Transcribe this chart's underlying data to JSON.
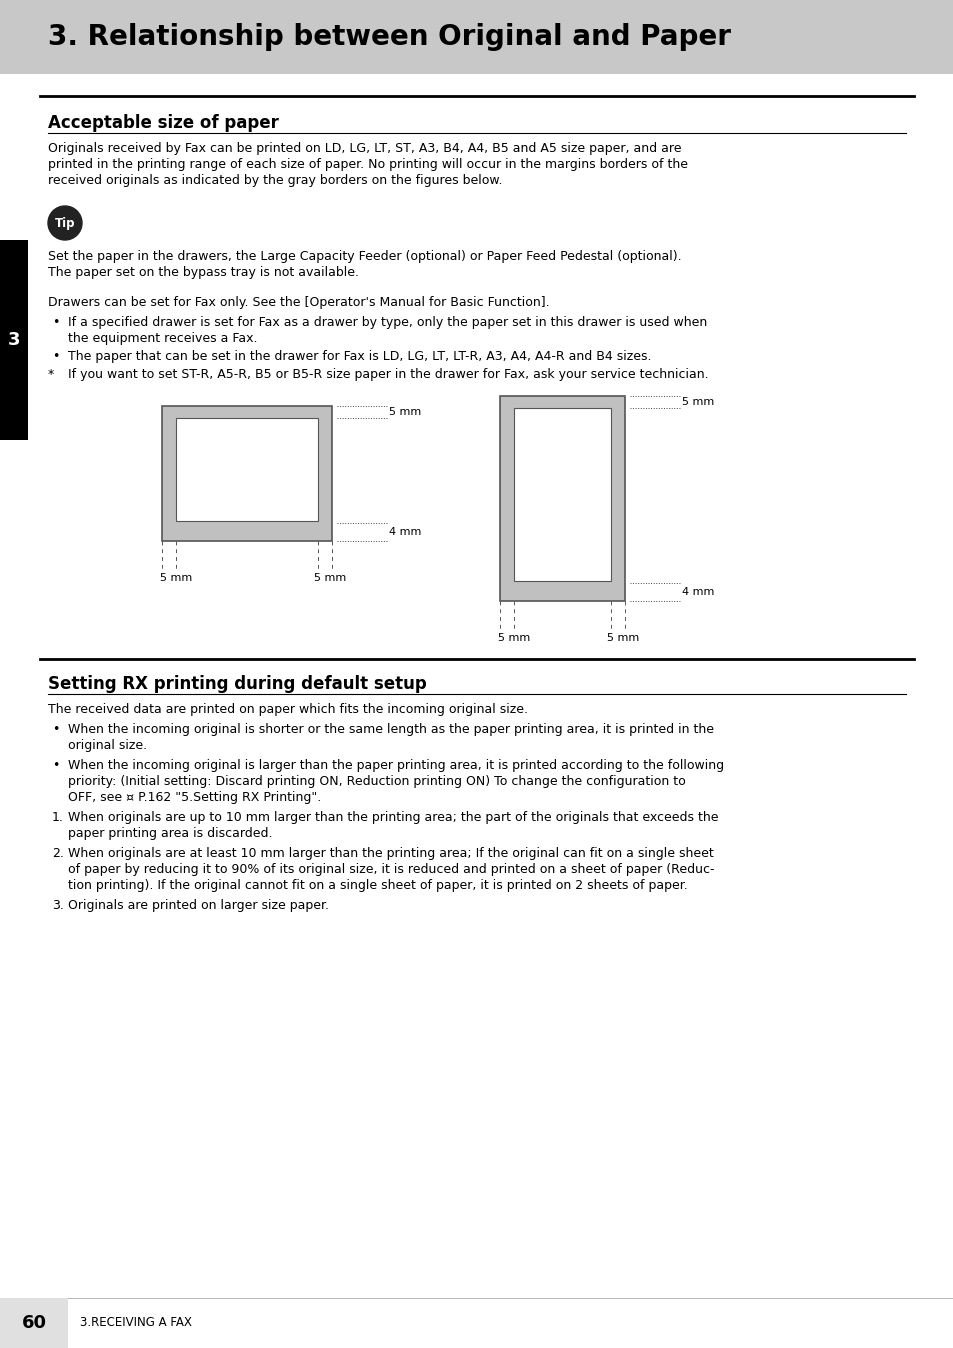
{
  "title": "3. Relationship between Original and Paper",
  "title_bg": "#c8c8c8",
  "section1_heading": "Acceptable size of paper",
  "section1_body_line1": "Originals received by Fax can be printed on LD, LG, LT, ST, A3, B4, A4, B5 and A5 size paper, and are",
  "section1_body_line2": "printed in the printing range of each size of paper. No printing will occur in the margins borders of the",
  "section1_body_line3": "received originals as indicated by the gray borders on the figures below.",
  "tip_label": "Tip",
  "tip_bg": "#222222",
  "tip_text_color": "#ffffff",
  "tip_body_line1": "Set the paper in the drawers, the Large Capacity Feeder (optional) or Paper Feed Pedestal (optional).",
  "tip_body_line2": "The paper set on the bypass tray is not available.",
  "drawers_line": "Drawers can be set for Fax only. See the [Operator's Manual for Basic Function].",
  "bullet1_line1": "If a specified drawer is set for Fax as a drawer by type, only the paper set in this drawer is used when",
  "bullet1_line2": "the equipment receives a Fax.",
  "bullet2_line1": "The paper that can be set in the drawer for Fax is LD, LG, LT, LT-R, A3, A4, A4-R and B4 sizes.",
  "bullet3_line1": "If you want to set ST-R, A5-R, B5 or B5-R size paper in the drawer for Fax, ask your service technician.",
  "section2_heading": "Setting RX printing during default setup",
  "section2_body": "The received data are printed on paper which fits the incoming original size.",
  "s2b1_l1": "When the incoming original is shorter or the same length as the paper printing area, it is printed in the",
  "s2b1_l2": "original size.",
  "s2b2_l1": "When the incoming original is larger than the paper printing area, it is printed according to the following",
  "s2b2_l2": "priority: (Initial setting: Discard printing ON, Reduction printing ON) To change the configuration to",
  "s2b2_l3": "OFF, see ¤ P.162 \"5.Setting RX Printing\".",
  "s2n1_l1": "When originals are up to 10 mm larger than the printing area; the part of the originals that exceeds the",
  "s2n1_l2": "paper printing area is discarded.",
  "s2n2_l1": "When originals are at least 10 mm larger than the printing area; If the original can fit on a single sheet",
  "s2n2_l2": "of paper by reducing it to 90% of its original size, it is reduced and printed on a sheet of paper (Reduc-",
  "s2n2_l3": "tion printing). If the original cannot fit on a single sheet of paper, it is printed on 2 sheets of paper.",
  "s2n3_l1": "Originals are printed on larger size paper.",
  "footer_text": "60",
  "footer_sub": "3.RECEIVING A FAX",
  "sidebar_num": "3",
  "sidebar_bg": "#000000",
  "sidebar_text_color": "#ffffff",
  "diagram_gray": "#c0c0c0",
  "white_inner": "#ffffff",
  "bg_color": "#ffffff"
}
